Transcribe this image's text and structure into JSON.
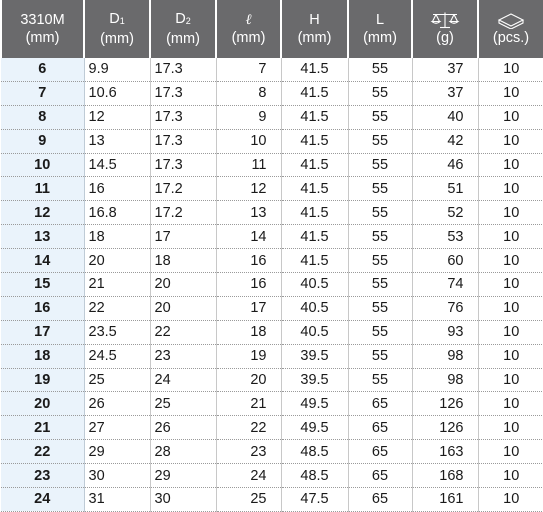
{
  "header": {
    "model": "3310M",
    "model_unit": "(mm)",
    "d1_label": "D",
    "d1_sub": "1",
    "d1_unit": "(mm)",
    "d2_label": "D",
    "d2_sub": "2",
    "d2_unit": "(mm)",
    "l_label": "ℓ",
    "l_unit": "(mm)",
    "h_label": "H",
    "h_unit": "(mm)",
    "L_label": "L",
    "L_unit": "(mm)",
    "weight_icon": "scale-icon",
    "weight_unit": "(g)",
    "pcs_icon": "box-icon",
    "pcs_unit": "(pcs.)"
  },
  "rows": [
    {
      "size": "6",
      "d1": "9.9",
      "d2": "17.3",
      "l": "7",
      "h": "41.5",
      "L": "55",
      "g": "37",
      "pcs": "10"
    },
    {
      "size": "7",
      "d1": "10.6",
      "d2": "17.3",
      "l": "8",
      "h": "41.5",
      "L": "55",
      "g": "37",
      "pcs": "10"
    },
    {
      "size": "8",
      "d1": "12",
      "d2": "17.3",
      "l": "9",
      "h": "41.5",
      "L": "55",
      "g": "40",
      "pcs": "10"
    },
    {
      "size": "9",
      "d1": "13",
      "d2": "17.3",
      "l": "10",
      "h": "41.5",
      "L": "55",
      "g": "42",
      "pcs": "10"
    },
    {
      "size": "10",
      "d1": "14.5",
      "d2": "17.3",
      "l": "11",
      "h": "41.5",
      "L": "55",
      "g": "46",
      "pcs": "10"
    },
    {
      "size": "11",
      "d1": "16",
      "d2": "17.2",
      "l": "12",
      "h": "41.5",
      "L": "55",
      "g": "51",
      "pcs": "10"
    },
    {
      "size": "12",
      "d1": "16.8",
      "d2": "17.2",
      "l": "13",
      "h": "41.5",
      "L": "55",
      "g": "52",
      "pcs": "10"
    },
    {
      "size": "13",
      "d1": "18",
      "d2": "17",
      "l": "14",
      "h": "41.5",
      "L": "55",
      "g": "53",
      "pcs": "10"
    },
    {
      "size": "14",
      "d1": "20",
      "d2": "18",
      "l": "16",
      "h": "41.5",
      "L": "55",
      "g": "60",
      "pcs": "10"
    },
    {
      "size": "15",
      "d1": "21",
      "d2": "20",
      "l": "16",
      "h": "40.5",
      "L": "55",
      "g": "74",
      "pcs": "10"
    },
    {
      "size": "16",
      "d1": "22",
      "d2": "20",
      "l": "17",
      "h": "40.5",
      "L": "55",
      "g": "76",
      "pcs": "10"
    },
    {
      "size": "17",
      "d1": "23.5",
      "d2": "22",
      "l": "18",
      "h": "40.5",
      "L": "55",
      "g": "93",
      "pcs": "10"
    },
    {
      "size": "18",
      "d1": "24.5",
      "d2": "23",
      "l": "19",
      "h": "39.5",
      "L": "55",
      "g": "98",
      "pcs": "10"
    },
    {
      "size": "19",
      "d1": "25",
      "d2": "24",
      "l": "20",
      "h": "39.5",
      "L": "55",
      "g": "98",
      "pcs": "10"
    },
    {
      "size": "20",
      "d1": "26",
      "d2": "25",
      "l": "21",
      "h": "49.5",
      "L": "65",
      "g": "126",
      "pcs": "10"
    },
    {
      "size": "21",
      "d1": "27",
      "d2": "26",
      "l": "22",
      "h": "49.5",
      "L": "65",
      "g": "126",
      "pcs": "10"
    },
    {
      "size": "22",
      "d1": "29",
      "d2": "28",
      "l": "23",
      "h": "48.5",
      "L": "65",
      "g": "163",
      "pcs": "10"
    },
    {
      "size": "23",
      "d1": "30",
      "d2": "29",
      "l": "24",
      "h": "48.5",
      "L": "65",
      "g": "168",
      "pcs": "10"
    },
    {
      "size": "24",
      "d1": "31",
      "d2": "30",
      "l": "25",
      "h": "47.5",
      "L": "65",
      "g": "161",
      "pcs": "10"
    }
  ]
}
